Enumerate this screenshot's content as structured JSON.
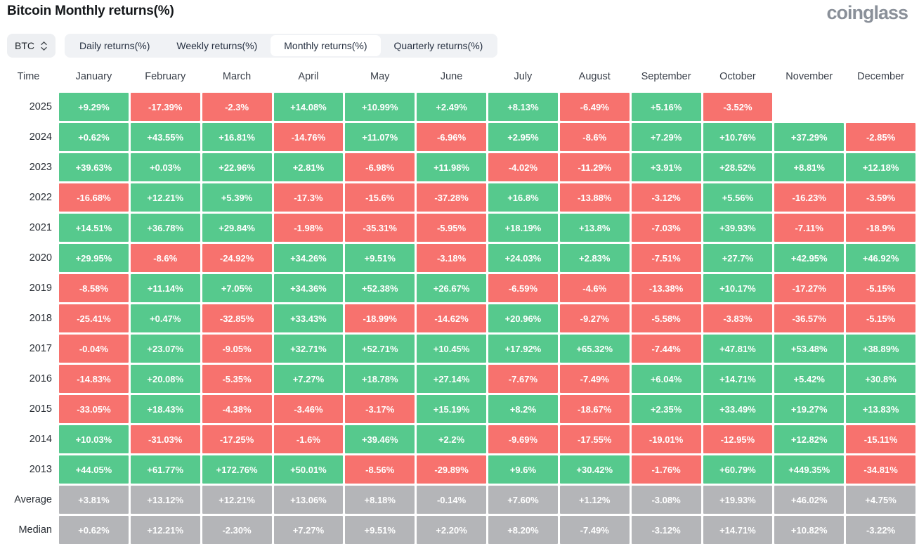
{
  "header": {
    "title": "Bitcoin Monthly returns(%)",
    "logo": "coinglass"
  },
  "controls": {
    "symbol_select": {
      "value": "BTC"
    },
    "tabs": [
      {
        "label": "Daily returns(%)",
        "active": false
      },
      {
        "label": "Weekly returns(%)",
        "active": false
      },
      {
        "label": "Monthly returns(%)",
        "active": true
      },
      {
        "label": "Quarterly returns(%)",
        "active": false
      }
    ]
  },
  "colors": {
    "positive": "#56C98D",
    "negative": "#F7726E",
    "neutral": "#B4B5B8",
    "cell_text": "#FFFFFF"
  },
  "chart_data": {
    "type": "heatmap",
    "title": "Bitcoin Monthly returns(%)",
    "time_column_header": "Time",
    "categories": [
      "January",
      "February",
      "March",
      "April",
      "May",
      "June",
      "July",
      "August",
      "September",
      "October",
      "November",
      "December"
    ],
    "rows": [
      {
        "label": "2025",
        "kind": "year",
        "values": [
          "+9.29%",
          "-17.39%",
          "-2.3%",
          "+14.08%",
          "+10.99%",
          "+2.49%",
          "+8.13%",
          "-6.49%",
          "+5.16%",
          "-3.52%",
          null,
          null
        ]
      },
      {
        "label": "2024",
        "kind": "year",
        "values": [
          "+0.62%",
          "+43.55%",
          "+16.81%",
          "-14.76%",
          "+11.07%",
          "-6.96%",
          "+2.95%",
          "-8.6%",
          "+7.29%",
          "+10.76%",
          "+37.29%",
          "-2.85%"
        ]
      },
      {
        "label": "2023",
        "kind": "year",
        "values": [
          "+39.63%",
          "+0.03%",
          "+22.96%",
          "+2.81%",
          "-6.98%",
          "+11.98%",
          "-4.02%",
          "-11.29%",
          "+3.91%",
          "+28.52%",
          "+8.81%",
          "+12.18%"
        ]
      },
      {
        "label": "2022",
        "kind": "year",
        "values": [
          "-16.68%",
          "+12.21%",
          "+5.39%",
          "-17.3%",
          "-15.6%",
          "-37.28%",
          "+16.8%",
          "-13.88%",
          "-3.12%",
          "+5.56%",
          "-16.23%",
          "-3.59%"
        ]
      },
      {
        "label": "2021",
        "kind": "year",
        "values": [
          "+14.51%",
          "+36.78%",
          "+29.84%",
          "-1.98%",
          "-35.31%",
          "-5.95%",
          "+18.19%",
          "+13.8%",
          "-7.03%",
          "+39.93%",
          "-7.11%",
          "-18.9%"
        ]
      },
      {
        "label": "2020",
        "kind": "year",
        "values": [
          "+29.95%",
          "-8.6%",
          "-24.92%",
          "+34.26%",
          "+9.51%",
          "-3.18%",
          "+24.03%",
          "+2.83%",
          "-7.51%",
          "+27.7%",
          "+42.95%",
          "+46.92%"
        ]
      },
      {
        "label": "2019",
        "kind": "year",
        "values": [
          "-8.58%",
          "+11.14%",
          "+7.05%",
          "+34.36%",
          "+52.38%",
          "+26.67%",
          "-6.59%",
          "-4.6%",
          "-13.38%",
          "+10.17%",
          "-17.27%",
          "-5.15%"
        ]
      },
      {
        "label": "2018",
        "kind": "year",
        "values": [
          "-25.41%",
          "+0.47%",
          "-32.85%",
          "+33.43%",
          "-18.99%",
          "-14.62%",
          "+20.96%",
          "-9.27%",
          "-5.58%",
          "-3.83%",
          "-36.57%",
          "-5.15%"
        ]
      },
      {
        "label": "2017",
        "kind": "year",
        "values": [
          "-0.04%",
          "+23.07%",
          "-9.05%",
          "+32.71%",
          "+52.71%",
          "+10.45%",
          "+17.92%",
          "+65.32%",
          "-7.44%",
          "+47.81%",
          "+53.48%",
          "+38.89%"
        ]
      },
      {
        "label": "2016",
        "kind": "year",
        "values": [
          "-14.83%",
          "+20.08%",
          "-5.35%",
          "+7.27%",
          "+18.78%",
          "+27.14%",
          "-7.67%",
          "-7.49%",
          "+6.04%",
          "+14.71%",
          "+5.42%",
          "+30.8%"
        ]
      },
      {
        "label": "2015",
        "kind": "year",
        "values": [
          "-33.05%",
          "+18.43%",
          "-4.38%",
          "-3.46%",
          "-3.17%",
          "+15.19%",
          "+8.2%",
          "-18.67%",
          "+2.35%",
          "+33.49%",
          "+19.27%",
          "+13.83%"
        ]
      },
      {
        "label": "2014",
        "kind": "year",
        "values": [
          "+10.03%",
          "-31.03%",
          "-17.25%",
          "-1.6%",
          "+39.46%",
          "+2.2%",
          "-9.69%",
          "-17.55%",
          "-19.01%",
          "-12.95%",
          "+12.82%",
          "-15.11%"
        ]
      },
      {
        "label": "2013",
        "kind": "year",
        "values": [
          "+44.05%",
          "+61.77%",
          "+172.76%",
          "+50.01%",
          "-8.56%",
          "-29.89%",
          "+9.6%",
          "+30.42%",
          "-1.76%",
          "+60.79%",
          "+449.35%",
          "-34.81%"
        ]
      },
      {
        "label": "Average",
        "kind": "summary",
        "values": [
          "+3.81%",
          "+13.12%",
          "+12.21%",
          "+13.06%",
          "+8.18%",
          "-0.14%",
          "+7.60%",
          "+1.12%",
          "-3.08%",
          "+19.93%",
          "+46.02%",
          "+4.75%"
        ]
      },
      {
        "label": "Median",
        "kind": "summary",
        "values": [
          "+0.62%",
          "+12.21%",
          "-2.30%",
          "+7.27%",
          "+9.51%",
          "+2.20%",
          "+8.20%",
          "-7.49%",
          "-3.12%",
          "+14.71%",
          "+10.82%",
          "-3.22%"
        ]
      }
    ]
  }
}
